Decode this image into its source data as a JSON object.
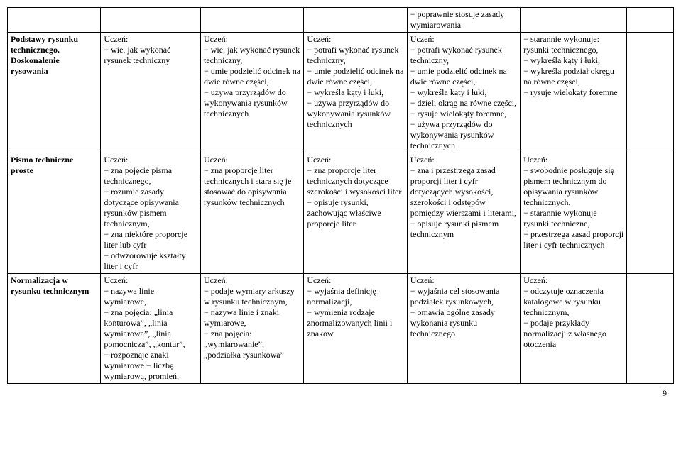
{
  "columns": {
    "widths": [
      "14%",
      "15%",
      "15.5%",
      "15.5%",
      "17%",
      "16%",
      "7%"
    ]
  },
  "row0": {
    "c4": "− poprawnie stosuje zasady wymiarowania"
  },
  "row1": {
    "c0": "Podstawy rysunku technicznego. Doskonalenie rysowania",
    "c1": "Uczeń:\n− wie, jak wykonać rysunek techniczny",
    "c2": "Uczeń:\n− wie, jak wykonać rysunek techniczny,\n− umie podzielić odcinek na dwie równe części,\n− używa przyrządów do wykonywania rysunków technicznych",
    "c3": "Uczeń:\n− potrafi wykonać rysunek techniczny,\n− umie podzielić odcinek na dwie równe części,\n− wykreśla kąty i łuki,\n− używa przyrządów do wykonywania rysunków technicznych",
    "c4": "Uczeń:\n− potrafi wykonać rysunek techniczny,\n− umie podzielić odcinek na dwie równe części,\n− wykreśla kąty i łuki,\n− dzieli okrąg na równe części,\n− rysuje wielokąty foremne,\n− używa przyrządów do wykonywania rysunków technicznych",
    "c5": "− starannie wykonuje: rysunki technicznego,\n− wykreśla kąty i łuki,\n− wykreśla podział okręgu na równe części,\n− rysuje wielokąty foremne"
  },
  "row2": {
    "c0": "Pismo techniczne proste",
    "c1": "Uczeń:\n− zna pojęcie pisma technicznego,\n− rozumie zasady dotyczące opisywania rysunków pismem technicznym,\n− zna niektóre proporcje liter lub cyfr\n− odwzorowuje kształty liter i cyfr",
    "c2": "Uczeń:\n− zna proporcje liter technicznych i stara się je stosować do opisywania rysunków technicznych",
    "c3": "Uczeń:\n− zna proporcje liter technicznych dotyczące szerokości i wysokości liter\n− opisuje rysunki, zachowując właściwe proporcje liter",
    "c4": "Uczeń:\n− zna i przestrzega zasad proporcji liter i cyfr dotyczących wysokości, szerokości i odstępów pomiędzy wierszami i literami,\n− opisuje rysunki pismem technicznym",
    "c5": "Uczeń:\n− swobodnie posługuje się pismem technicznym do opisywania rysunków technicznych,\n− starannie wykonuje rysunki techniczne,\n− przestrzega zasad proporcji liter i cyfr technicznych"
  },
  "row3": {
    "c0": "Normalizacja w rysunku technicznym",
    "c1": "Uczeń:\n− nazywa linie wymiarowe,\n− zna pojęcia: „linia konturowa”, „linia wymiarowa”, „linia pomocnicza”, „kontur”,\n− rozpoznaje znaki wymiarowe − liczbę wymiarową, promień,",
    "c2": "Uczeń:\n− podaje wymiary arkuszy w rysunku technicznym,\n− nazywa linie i znaki wymiarowe,\n− zna pojęcia: „wymiarowanie”, „podziałka rysunkowa”",
    "c3": "Uczeń:\n− wyjaśnia definicję normalizacji,\n− wymienia rodzaje znormalizowanych linii i znaków",
    "c4": "Uczeń:\n− wyjaśnia cel stosowania podziałek rysunkowych,\n− omawia ogólne zasady wykonania rysunku technicznego",
    "c5": "Uczeń:\n− odczytuje oznaczenia katalogowe w rysunku technicznym,\n− podaje przykłady normalizacji z własnego otoczenia"
  },
  "pagenum": "9"
}
